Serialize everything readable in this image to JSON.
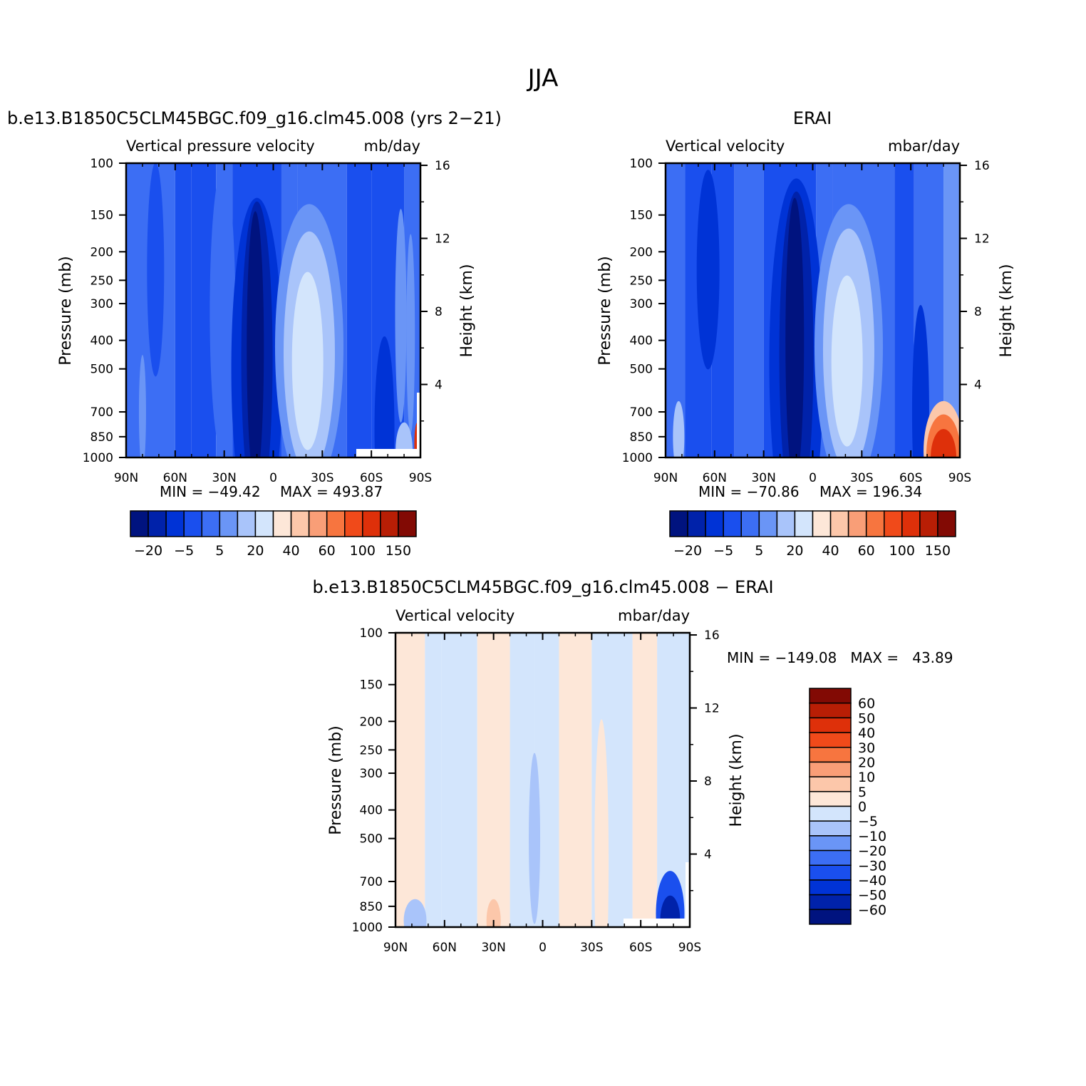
{
  "figure_title": "JJA",
  "colors": {
    "fill_palette": [
      "#00137f",
      "#0022aa",
      "#0033d6",
      "#1a4fee",
      "#3c6ef4",
      "#6a95f6",
      "#a9c4fa",
      "#d3e5fc",
      "#fde7d8",
      "#fcc7aa",
      "#f99e77",
      "#f7753f",
      "#f04a1a",
      "#de300a",
      "#b81e05",
      "#820a04"
    ],
    "diff_palette": [
      "#00137f",
      "#0022aa",
      "#0033d6",
      "#1a4fee",
      "#3c6ef4",
      "#6a95f6",
      "#a9c4fa",
      "#d3e5fc",
      "#fde7d8",
      "#fcc7aa",
      "#f99e77",
      "#f7753f",
      "#f04a1a",
      "#de300a",
      "#b81e05",
      "#820a04"
    ]
  },
  "chart_data": [
    {
      "type": "heatmap",
      "panel_title": "b.e13.B1850C5CLM45BGC.f09_g16.clm45.008 (yrs 2−21)",
      "left_string": "Vertical pressure velocity",
      "right_string": "mb/day",
      "ylabel": "Pressure (mb)",
      "ylabel_right": "Height (km)",
      "x_ticks": [
        "90N",
        "60N",
        "30N",
        "0",
        "30S",
        "60S",
        "90S"
      ],
      "y_ticks": [
        "100",
        "150",
        "200",
        "250",
        "300",
        "400",
        "500",
        "700",
        "850",
        "1000"
      ],
      "y_ticks_right": [
        "16",
        "12",
        "8",
        "4"
      ],
      "ylim": [
        1000,
        100
      ],
      "min_label": "MIN = −49.42",
      "max_label": "MAX = 493.87",
      "colorbar_labels": [
        "−20",
        "−5",
        "5",
        "20",
        "40",
        "60",
        "100",
        "150"
      ],
      "missing_region": "surface below 1000 mb near 60S–90S",
      "features": [
        {
          "lat": 10,
          "p": [
            190,
            1000
          ],
          "level": 0,
          "desc": "strong ascent near 10N"
        },
        {
          "lat": -20,
          "p": [
            230,
            1000
          ],
          "level": 7,
          "desc": "descent near 20S"
        },
        {
          "lat": -80,
          "p": [
            600,
            1000
          ],
          "level": 13,
          "desc": "large positive near Antarctica"
        }
      ]
    },
    {
      "type": "heatmap",
      "panel_title": "ERAI",
      "left_string": "Vertical velocity",
      "right_string": "mbar/day",
      "ylabel": "Pressure (mb)",
      "ylabel_right": "Height (km)",
      "x_ticks": [
        "90N",
        "60N",
        "30N",
        "0",
        "30S",
        "60S",
        "90S"
      ],
      "y_ticks": [
        "100",
        "150",
        "200",
        "250",
        "300",
        "400",
        "500",
        "700",
        "850",
        "1000"
      ],
      "y_ticks_right": [
        "16",
        "12",
        "8",
        "4"
      ],
      "ylim": [
        1000,
        100
      ],
      "min_label": "MIN = −70.86",
      "max_label": "MAX = 196.34",
      "colorbar_labels": [
        "−20",
        "−5",
        "5",
        "20",
        "40",
        "60",
        "100",
        "150"
      ],
      "features": [
        {
          "lat": 10,
          "p": [
            160,
            1000
          ],
          "level": 0,
          "desc": "strong ascent near 10N"
        },
        {
          "lat": -20,
          "p": [
            200,
            1000
          ],
          "level": 7,
          "desc": "descent near 20S"
        },
        {
          "lat": -80,
          "p": [
            650,
            1000
          ],
          "level": 13,
          "desc": "positive near Antarctica"
        }
      ]
    },
    {
      "type": "heatmap",
      "panel_title": "b.e13.B1850C5CLM45BGC.f09_g16.clm45.008 − ERAI",
      "left_string": "Vertical velocity",
      "right_string": "mbar/day",
      "ylabel": "Pressure (mb)",
      "ylabel_right": "Height (km)",
      "x_ticks": [
        "90N",
        "60N",
        "30N",
        "0",
        "30S",
        "60S",
        "90S"
      ],
      "y_ticks": [
        "100",
        "150",
        "200",
        "250",
        "300",
        "400",
        "500",
        "700",
        "850",
        "1000"
      ],
      "y_ticks_right": [
        "16",
        "12",
        "8",
        "4"
      ],
      "ylim": [
        1000,
        100
      ],
      "minmax_label": "MIN = −149.08   MAX =   43.89",
      "colorbar_labels": [
        "60",
        "50",
        "40",
        "30",
        "20",
        "10",
        "5",
        "0",
        "−5",
        "−10",
        "−20",
        "−30",
        "−40",
        "−50",
        "−60"
      ],
      "features": [
        {
          "lat": -80,
          "p": [
            720,
            980
          ],
          "level": 0,
          "desc": "strong negative near Antarctica"
        }
      ]
    }
  ]
}
